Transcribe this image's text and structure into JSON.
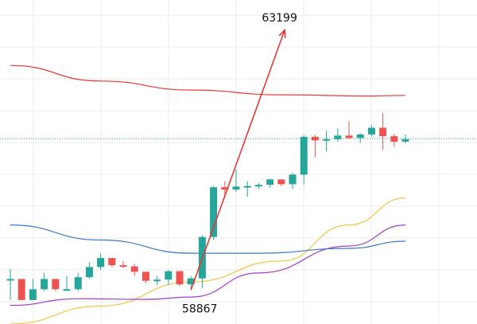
{
  "chart_data": {
    "type": "candlestick",
    "grid": true,
    "ylim": [
      58300,
      63700
    ],
    "colors": {
      "up": "#26a69a",
      "down": "#ef5350",
      "grid": "#ebebeb",
      "current_price_line": "#26a69a",
      "trend_arrow": "#e53935",
      "ma_red": "#e53935",
      "ma_yellow": "#f5c542",
      "ma_purple": "#a23cc7",
      "ma_blue": "#3a78c8"
    },
    "candles": [
      {
        "o": 59050,
        "h": 59220,
        "l": 58700,
        "c": 59050
      },
      {
        "o": 59050,
        "h": 59050,
        "l": 58700,
        "c": 58700
      },
      {
        "o": 58700,
        "h": 59050,
        "l": 58700,
        "c": 58880
      },
      {
        "o": 58880,
        "h": 59150,
        "l": 58850,
        "c": 59050
      },
      {
        "o": 59050,
        "h": 59050,
        "l": 58850,
        "c": 58880
      },
      {
        "o": 58880,
        "h": 59100,
        "l": 58850,
        "c": 58880
      },
      {
        "o": 58880,
        "h": 59150,
        "l": 58850,
        "c": 59080
      },
      {
        "o": 59080,
        "h": 59330,
        "l": 59050,
        "c": 59250
      },
      {
        "o": 59250,
        "h": 59480,
        "l": 59200,
        "c": 59400
      },
      {
        "o": 59400,
        "h": 59400,
        "l": 59250,
        "c": 59280
      },
      {
        "o": 59280,
        "h": 59350,
        "l": 59230,
        "c": 59260
      },
      {
        "o": 59260,
        "h": 59300,
        "l": 59100,
        "c": 59170
      },
      {
        "o": 59170,
        "h": 59170,
        "l": 58980,
        "c": 59020
      },
      {
        "o": 59020,
        "h": 59100,
        "l": 58950,
        "c": 59040
      },
      {
        "o": 59040,
        "h": 59200,
        "l": 58950,
        "c": 59180
      },
      {
        "o": 59180,
        "h": 59180,
        "l": 58930,
        "c": 58960
      },
      {
        "o": 58960,
        "h": 59100,
        "l": 58867,
        "c": 59060
      },
      {
        "o": 59060,
        "h": 59780,
        "l": 58900,
        "c": 59750
      },
      {
        "o": 59750,
        "h": 60600,
        "l": 59700,
        "c": 60580
      },
      {
        "o": 60580,
        "h": 60680,
        "l": 60400,
        "c": 60540
      },
      {
        "o": 60540,
        "h": 60880,
        "l": 60500,
        "c": 60590
      },
      {
        "o": 60590,
        "h": 60680,
        "l": 60420,
        "c": 60600
      },
      {
        "o": 60600,
        "h": 60650,
        "l": 60550,
        "c": 60620
      },
      {
        "o": 60620,
        "h": 60720,
        "l": 60570,
        "c": 60710
      },
      {
        "o": 60710,
        "h": 60710,
        "l": 60600,
        "c": 60630
      },
      {
        "o": 60630,
        "h": 60820,
        "l": 60550,
        "c": 60790
      },
      {
        "o": 60790,
        "h": 61450,
        "l": 60620,
        "c": 61420
      },
      {
        "o": 61420,
        "h": 61450,
        "l": 61080,
        "c": 61360
      },
      {
        "o": 61360,
        "h": 61520,
        "l": 61180,
        "c": 61380
      },
      {
        "o": 61380,
        "h": 61560,
        "l": 61340,
        "c": 61440
      },
      {
        "o": 61440,
        "h": 61680,
        "l": 61380,
        "c": 61400
      },
      {
        "o": 61400,
        "h": 61480,
        "l": 61320,
        "c": 61460
      },
      {
        "o": 61460,
        "h": 61620,
        "l": 61420,
        "c": 61570
      },
      {
        "o": 61570,
        "h": 61820,
        "l": 61200,
        "c": 61430
      },
      {
        "o": 61430,
        "h": 61470,
        "l": 61250,
        "c": 61340
      },
      {
        "o": 61340,
        "h": 61460,
        "l": 61310,
        "c": 61380
      }
    ],
    "current_price": 61390,
    "moving_averages": [
      {
        "color": "ma_red",
        "points": [
          [
            0,
            62610
          ],
          [
            8,
            62350
          ],
          [
            16,
            62200
          ],
          [
            24,
            62120
          ],
          [
            32,
            62100
          ],
          [
            35,
            62110
          ]
        ]
      },
      {
        "color": "ma_yellow",
        "points": [
          [
            0,
            58300
          ],
          [
            8,
            58600
          ],
          [
            16,
            59000
          ],
          [
            24,
            59350
          ],
          [
            30,
            59950
          ],
          [
            35,
            60400
          ]
        ]
      },
      {
        "color": "ma_purple",
        "points": [
          [
            0,
            58610
          ],
          [
            6,
            58720
          ],
          [
            12,
            58710
          ],
          [
            16,
            58750
          ],
          [
            22,
            59150
          ],
          [
            30,
            59600
          ],
          [
            35,
            59950
          ]
        ]
      },
      {
        "color": "ma_blue",
        "points": [
          [
            0,
            59950
          ],
          [
            8,
            59700
          ],
          [
            16,
            59480
          ],
          [
            22,
            59480
          ],
          [
            30,
            59560
          ],
          [
            35,
            59680
          ]
        ]
      }
    ],
    "annotations": [
      {
        "text": "63199",
        "at": [
          23,
          63199
        ]
      },
      {
        "text": "58867",
        "at": [
          16,
          58867
        ]
      }
    ],
    "trend_arrow": {
      "from": [
        16,
        58867
      ],
      "to": [
        24.3,
        63199
      ]
    }
  }
}
